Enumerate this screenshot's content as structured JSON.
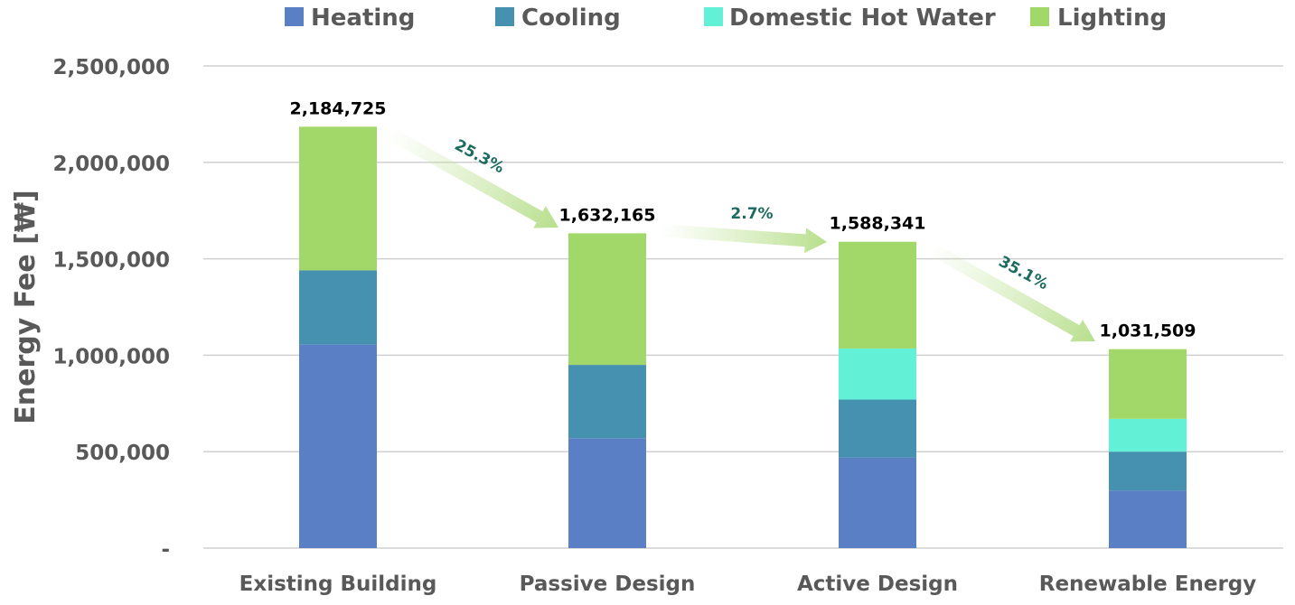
{
  "chart_data": {
    "type": "bar",
    "stacked": true,
    "title": "",
    "xlabel": "",
    "ylabel": "Energy Fee [₩]",
    "ylim": [
      0,
      2500000
    ],
    "yticks": [
      0,
      500000,
      1000000,
      1500000,
      2000000,
      2500000
    ],
    "ytick_labels": [
      "-",
      "500,000",
      "1,000,000",
      "1,500,000",
      "2,000,000",
      "2,500,000"
    ],
    "grid": true,
    "legend_position": "top",
    "categories": [
      "Existing Building",
      "Passive Design",
      "Active Design",
      "Renewable Energy"
    ],
    "series": [
      {
        "name": "Heating",
        "color": "#5b7fc4",
        "values": [
          1055000,
          570000,
          470000,
          298000
        ]
      },
      {
        "name": "Cooling",
        "color": "#4691b0",
        "values": [
          385000,
          380000,
          300000,
          202000
        ]
      },
      {
        "name": "Domestic Hot Water",
        "color": "#62f0d6",
        "values": [
          0,
          0,
          265000,
          170000
        ]
      },
      {
        "name": "Lighting",
        "color": "#a2d86a",
        "values": [
          744725,
          682165,
          553341,
          361509
        ]
      }
    ],
    "totals": [
      2184725,
      1632165,
      1588341,
      1031509
    ],
    "total_labels": [
      "2,184,725",
      "1,632,165",
      "1,588,341",
      "1,031,509"
    ],
    "reductions": [
      {
        "from": "Existing Building",
        "to": "Passive Design",
        "label": "25.3%"
      },
      {
        "from": "Passive Design",
        "to": "Active Design",
        "label": "2.7%"
      },
      {
        "from": "Active Design",
        "to": "Renewable Energy",
        "label": "35.1%"
      }
    ]
  }
}
